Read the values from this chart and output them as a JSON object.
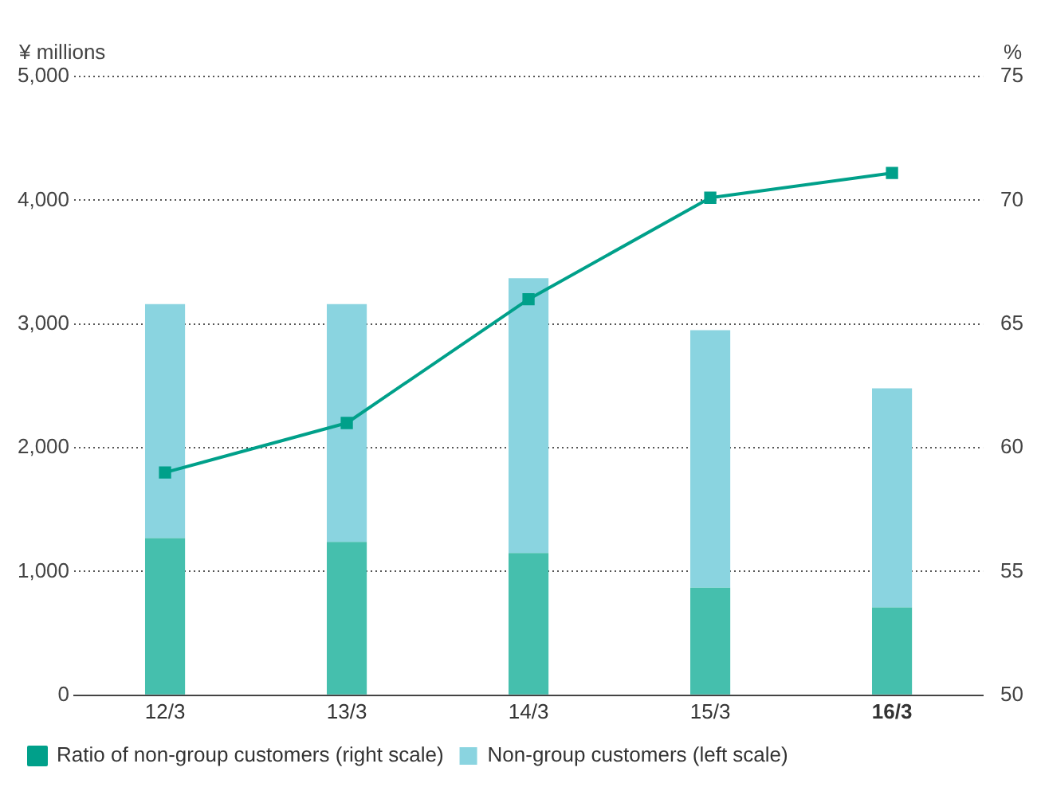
{
  "chart_data": {
    "type": "bar",
    "stacked": true,
    "ylabel": "¥ millions",
    "y2label": "%",
    "categories": [
      "12/3",
      "13/3",
      "14/3",
      "15/3",
      "16/3"
    ],
    "series": [
      {
        "color": "#45bfad",
        "values": [
          1270,
          1240,
          1150,
          870,
          710
        ]
      },
      {
        "name": "Non-group customers (left scale)",
        "color": "#8ad4e0",
        "values": [
          1890,
          1920,
          2220,
          2080,
          1770
        ]
      },
      {
        "name": "Ratio of non-group customers (right scale)",
        "type": "line",
        "axis": "y2",
        "color": "#00a08a",
        "marker": "square",
        "values": [
          59.0,
          61.0,
          66.0,
          70.1,
          71.1
        ]
      }
    ],
    "ylim": [
      0,
      5000
    ],
    "yticks": [
      {
        "value": 0,
        "label": "0"
      },
      {
        "value": 1000,
        "label": "1,000"
      },
      {
        "value": 2000,
        "label": "2,000"
      },
      {
        "value": 3000,
        "label": "3,000"
      },
      {
        "value": 4000,
        "label": "4,000"
      },
      {
        "value": 5000,
        "label": "5,000"
      }
    ],
    "y2lim": [
      50,
      75
    ],
    "y2ticks": [
      50,
      55,
      60,
      65,
      70,
      75
    ],
    "grid": "y",
    "legend": "bottom"
  }
}
